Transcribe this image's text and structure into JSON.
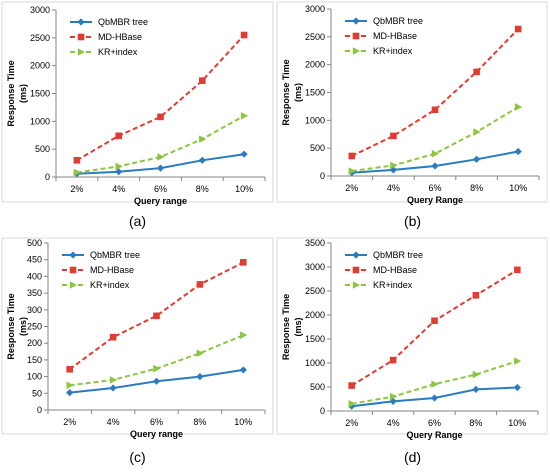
{
  "colors": {
    "qbmbr": "#2a7bc0",
    "mdhbase": "#e03c31",
    "krindex": "#8cc63f",
    "frame": "#d8d8d8",
    "axis": "#868686",
    "text": "#000000"
  },
  "chart_data": [
    {
      "type": "line",
      "caption": "(a)",
      "categories": [
        "2%",
        "4%",
        "6%",
        "8%",
        "10%"
      ],
      "xlabel": "Query range",
      "ylabel": [
        "Response Time",
        "(ms)"
      ],
      "ylim": [
        0,
        3000
      ],
      "yticks": [
        0,
        500,
        1000,
        1500,
        2000,
        2500,
        3000
      ],
      "grid": false,
      "legend_position": "top-left",
      "series": [
        {
          "name": "QbMBR tree",
          "values": [
            60,
            95,
            160,
            300,
            410
          ]
        },
        {
          "name": "MD-HBase",
          "values": [
            300,
            740,
            1080,
            1730,
            2550
          ]
        },
        {
          "name": "KR+index",
          "values": [
            80,
            190,
            360,
            680,
            1100
          ]
        }
      ]
    },
    {
      "type": "line",
      "caption": "(b)",
      "categories": [
        "2%",
        "4%",
        "6%",
        "8%",
        "10%"
      ],
      "xlabel": "Query Range",
      "ylabel": [
        "Response Time",
        "(ms)"
      ],
      "ylim": [
        0,
        3000
      ],
      "yticks": [
        0,
        500,
        1000,
        1500,
        2000,
        2500,
        3000
      ],
      "grid": false,
      "legend_position": "top-left",
      "series": [
        {
          "name": "QbMBR tree",
          "values": [
            60,
            110,
            180,
            300,
            440
          ]
        },
        {
          "name": "MD-HBase",
          "values": [
            360,
            720,
            1190,
            1870,
            2640
          ]
        },
        {
          "name": "KR+index",
          "values": [
            90,
            190,
            400,
            790,
            1240
          ]
        }
      ]
    },
    {
      "type": "line",
      "caption": "(c)",
      "categories": [
        "2%",
        "4%",
        "6%",
        "8%",
        "10%"
      ],
      "xlabel": "Query range",
      "ylabel": [
        "Response Time",
        "(ms)"
      ],
      "ylim": [
        0,
        500
      ],
      "yticks": [
        0,
        50,
        100,
        150,
        200,
        250,
        300,
        350,
        400,
        450,
        500
      ],
      "grid": false,
      "legend_position": "top-left",
      "series": [
        {
          "name": "QbMBR tree",
          "values": [
            52,
            66,
            86,
            100,
            120
          ]
        },
        {
          "name": "MD-HBase",
          "values": [
            122,
            218,
            282,
            376,
            442
          ]
        },
        {
          "name": "KR+index",
          "values": [
            74,
            90,
            124,
            170,
            224
          ]
        }
      ]
    },
    {
      "type": "line",
      "caption": "(d)",
      "categories": [
        "2%",
        "4%",
        "6%",
        "8%",
        "10%"
      ],
      "xlabel": "Query Range",
      "ylabel": [
        "Response Time",
        "(ms)"
      ],
      "ylim": [
        0,
        3500
      ],
      "yticks": [
        0,
        500,
        1000,
        1500,
        2000,
        2500,
        3000,
        3500
      ],
      "grid": false,
      "legend_position": "top-left",
      "series": [
        {
          "name": "QbMBR tree",
          "values": [
            100,
            200,
            270,
            450,
            490
          ]
        },
        {
          "name": "MD-HBase",
          "values": [
            530,
            1060,
            1880,
            2410,
            2940
          ]
        },
        {
          "name": "KR+index",
          "values": [
            150,
            300,
            560,
            760,
            1040
          ]
        }
      ]
    }
  ]
}
